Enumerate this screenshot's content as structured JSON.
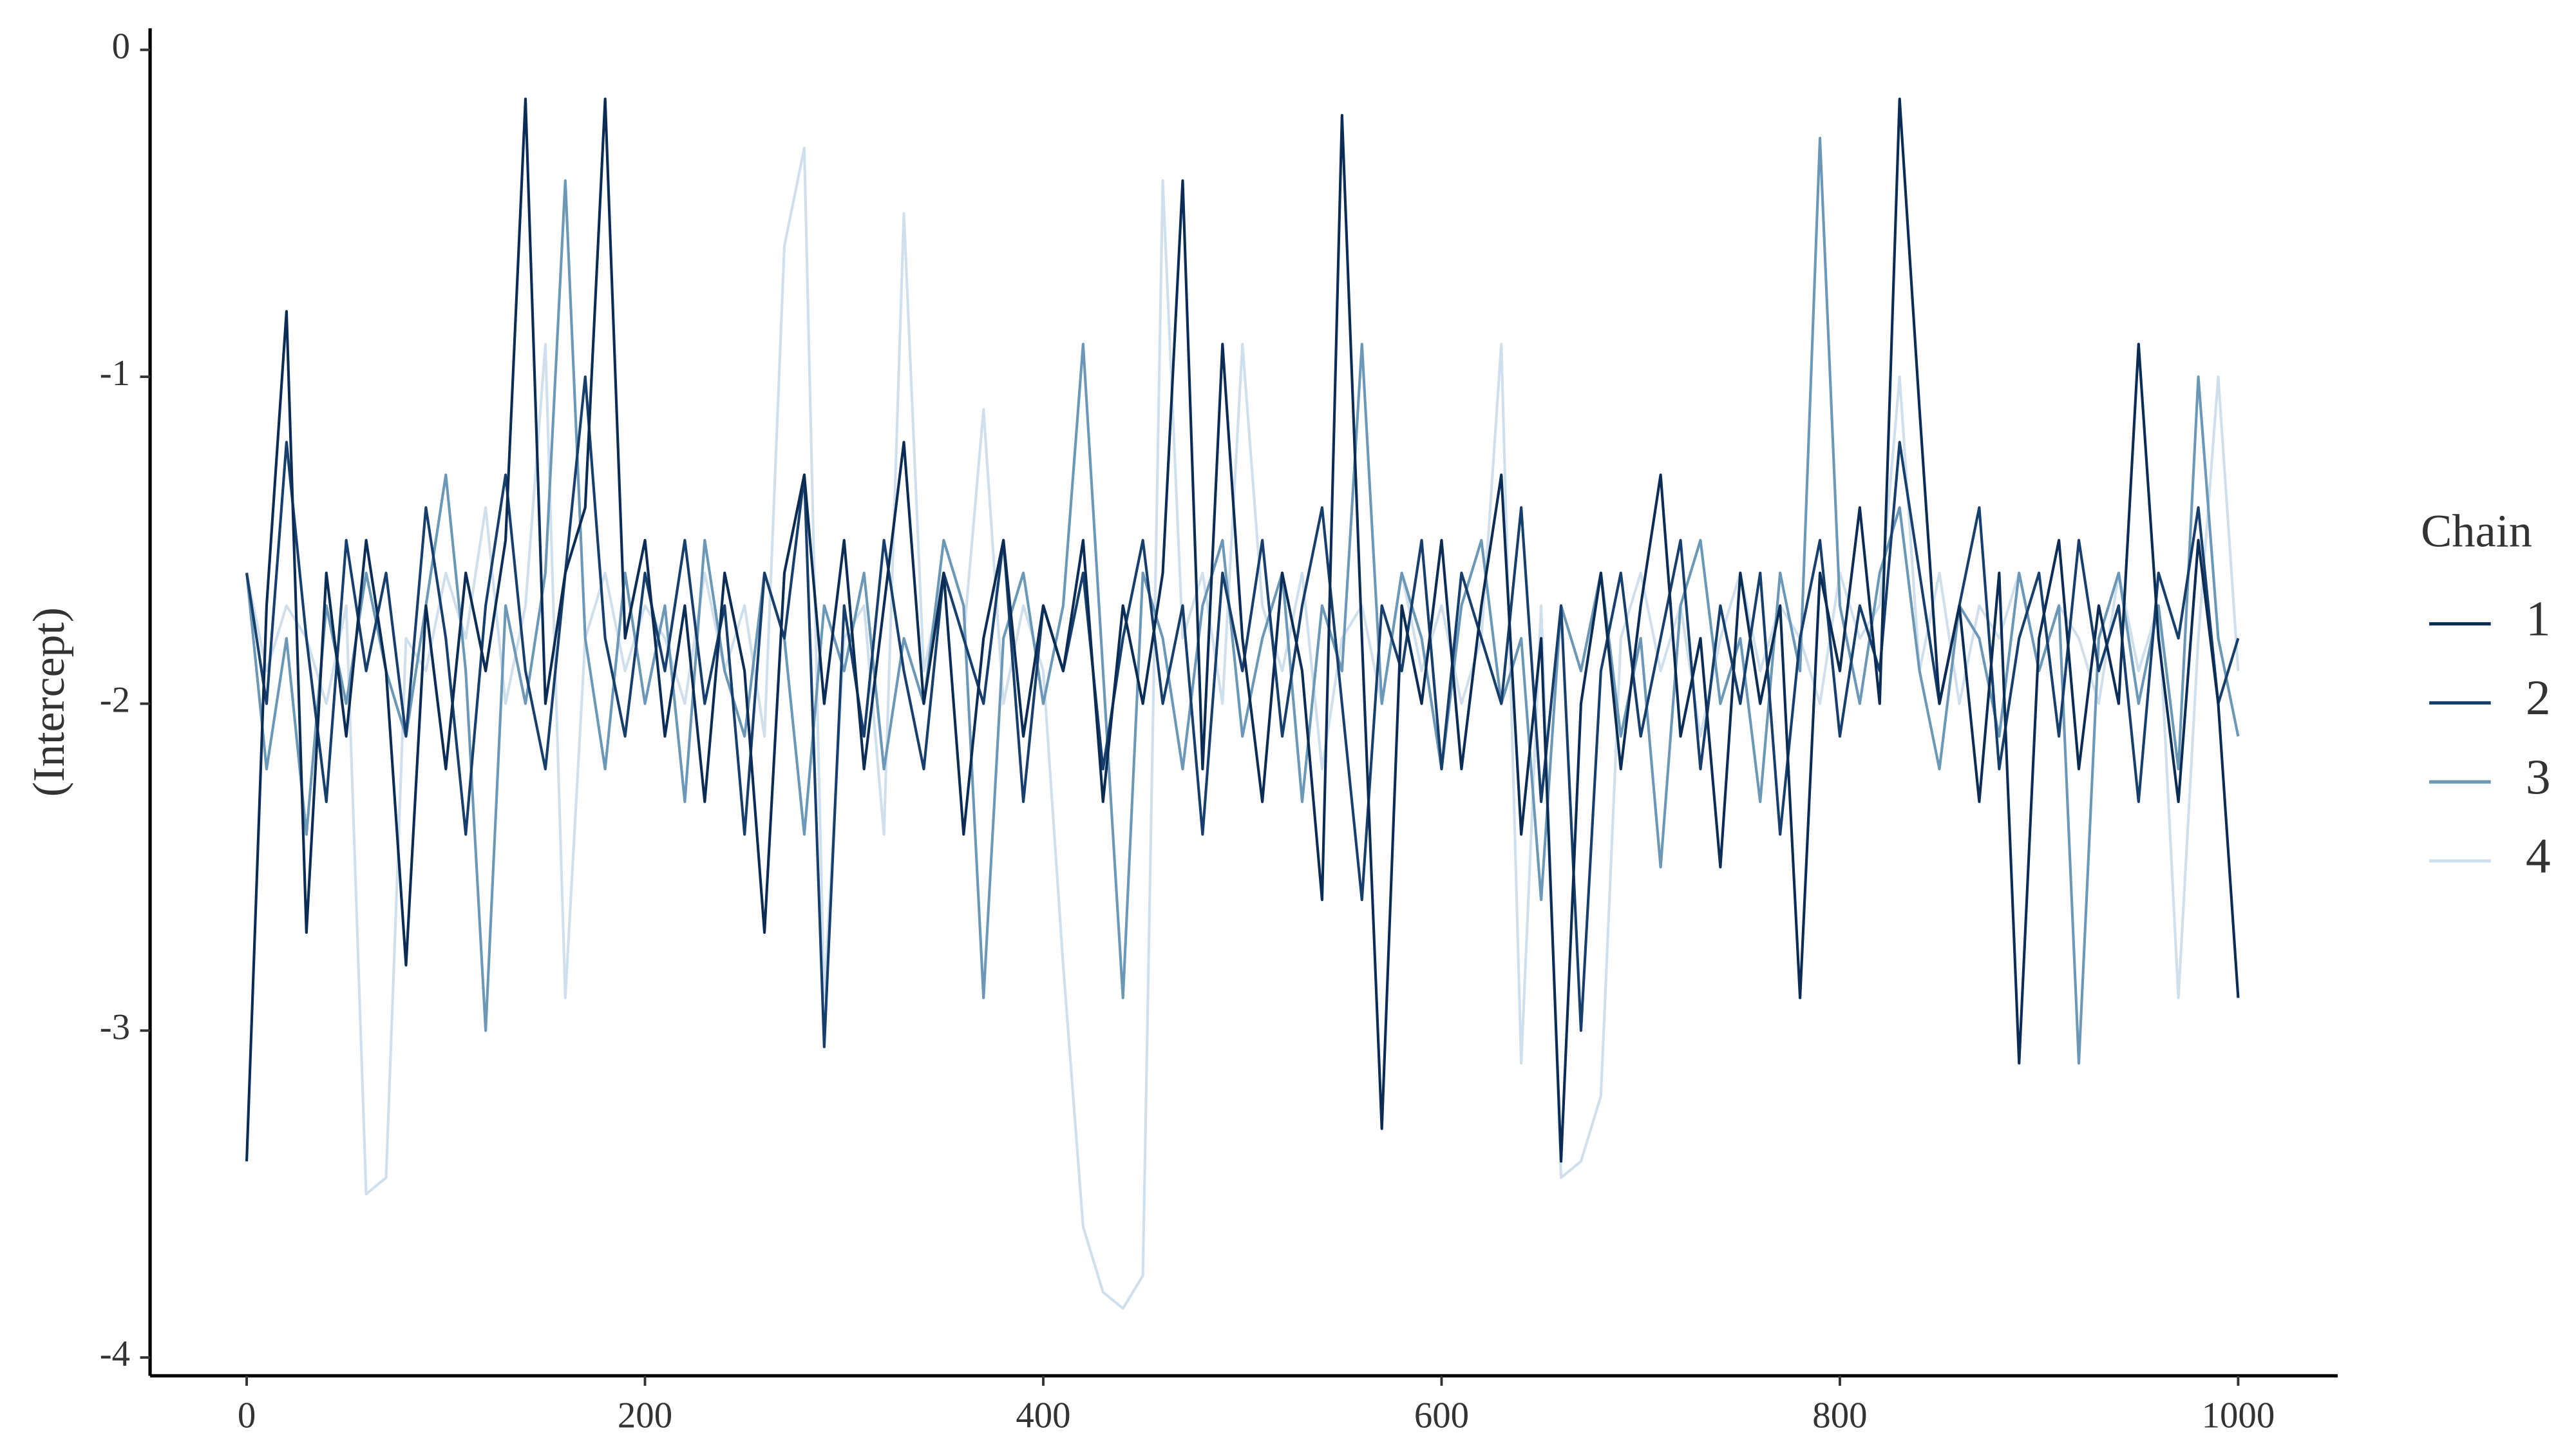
{
  "chart_data": {
    "type": "line",
    "y_label": "(Intercept)",
    "legend_title": "Chain",
    "legend": "right",
    "x": [
      0,
      10,
      20,
      30,
      40,
      50,
      60,
      70,
      80,
      90,
      100,
      110,
      120,
      130,
      140,
      150,
      160,
      170,
      180,
      190,
      200,
      210,
      220,
      230,
      240,
      250,
      260,
      270,
      280,
      290,
      300,
      310,
      320,
      330,
      340,
      350,
      360,
      370,
      380,
      390,
      400,
      410,
      420,
      430,
      440,
      450,
      460,
      470,
      480,
      490,
      500,
      510,
      520,
      530,
      540,
      550,
      560,
      570,
      580,
      590,
      600,
      610,
      620,
      630,
      640,
      650,
      660,
      670,
      680,
      690,
      700,
      710,
      720,
      730,
      740,
      750,
      760,
      770,
      780,
      790,
      800,
      810,
      820,
      830,
      840,
      850,
      860,
      870,
      880,
      890,
      900,
      910,
      920,
      930,
      940,
      950,
      960,
      970,
      980,
      990,
      1000
    ],
    "series": [
      {
        "name": "1",
        "color": "#0b2d55",
        "values": [
          -3.4,
          -1.7,
          -0.8,
          -2.7,
          -1.6,
          -2.1,
          -1.5,
          -1.9,
          -2.8,
          -1.7,
          -2.2,
          -1.6,
          -1.9,
          -1.5,
          -0.15,
          -2.0,
          -1.6,
          -1.4,
          -0.15,
          -1.8,
          -1.5,
          -2.1,
          -1.7,
          -2.3,
          -1.6,
          -1.9,
          -2.7,
          -1.6,
          -1.3,
          -2.0,
          -1.5,
          -2.2,
          -1.7,
          -1.2,
          -2.0,
          -1.6,
          -2.4,
          -1.8,
          -1.5,
          -2.1,
          -1.7,
          -1.9,
          -1.5,
          -2.3,
          -1.7,
          -2.0,
          -1.6,
          -0.4,
          -2.2,
          -0.9,
          -1.8,
          -2.3,
          -1.6,
          -1.9,
          -2.6,
          -0.2,
          -1.8,
          -3.3,
          -1.7,
          -2.0,
          -1.5,
          -2.2,
          -1.7,
          -1.3,
          -2.4,
          -1.8,
          -3.4,
          -2.0,
          -1.6,
          -2.2,
          -1.7,
          -1.3,
          -2.1,
          -1.8,
          -2.5,
          -1.6,
          -2.0,
          -1.7,
          -2.9,
          -1.6,
          -1.9,
          -1.4,
          -2.0,
          -0.15,
          -1.1,
          -2.0,
          -1.7,
          -2.3,
          -1.6,
          -3.1,
          -1.8,
          -1.5,
          -2.2,
          -1.7,
          -2.0,
          -0.9,
          -1.8,
          -2.3,
          -1.5,
          -2.0,
          -2.9
        ]
      },
      {
        "name": "2",
        "color": "#163f6e",
        "values": [
          -1.6,
          -2.0,
          -1.2,
          -1.8,
          -2.3,
          -1.5,
          -1.9,
          -1.6,
          -2.1,
          -1.4,
          -1.8,
          -2.4,
          -1.7,
          -1.3,
          -1.9,
          -2.2,
          -1.6,
          -1.0,
          -1.8,
          -2.1,
          -1.6,
          -1.9,
          -1.5,
          -2.0,
          -1.7,
          -2.4,
          -1.6,
          -1.8,
          -1.3,
          -3.05,
          -1.7,
          -2.1,
          -1.5,
          -1.9,
          -2.2,
          -1.6,
          -1.8,
          -2.0,
          -1.5,
          -2.3,
          -1.7,
          -1.9,
          -1.6,
          -2.2,
          -1.8,
          -1.5,
          -2.0,
          -1.7,
          -2.4,
          -1.6,
          -1.9,
          -1.5,
          -2.1,
          -1.7,
          -1.4,
          -2.0,
          -2.6,
          -1.7,
          -1.9,
          -1.5,
          -2.2,
          -1.6,
          -1.8,
          -2.0,
          -1.4,
          -2.3,
          -1.7,
          -3.0,
          -1.9,
          -1.6,
          -2.1,
          -1.8,
          -1.5,
          -2.2,
          -1.7,
          -2.0,
          -1.6,
          -2.4,
          -1.8,
          -1.5,
          -2.1,
          -1.7,
          -1.9,
          -1.2,
          -1.6,
          -2.0,
          -1.7,
          -1.4,
          -2.2,
          -1.8,
          -1.6,
          -2.1,
          -1.5,
          -1.9,
          -1.7,
          -2.3,
          -1.6,
          -1.8,
          -1.4,
          -2.0,
          -1.8
        ]
      },
      {
        "name": "3",
        "color": "#6a98b6",
        "values": [
          -1.6,
          -2.2,
          -1.8,
          -2.4,
          -1.7,
          -2.0,
          -1.6,
          -1.9,
          -2.1,
          -1.7,
          -1.3,
          -1.9,
          -3.0,
          -1.7,
          -2.0,
          -1.6,
          -0.4,
          -1.8,
          -2.2,
          -1.6,
          -2.0,
          -1.7,
          -2.3,
          -1.5,
          -1.9,
          -2.1,
          -1.6,
          -1.8,
          -2.4,
          -1.7,
          -1.9,
          -1.6,
          -2.2,
          -1.8,
          -2.0,
          -1.5,
          -1.7,
          -2.9,
          -1.8,
          -1.6,
          -2.0,
          -1.7,
          -0.9,
          -1.9,
          -2.9,
          -1.6,
          -1.8,
          -2.2,
          -1.7,
          -1.5,
          -2.1,
          -1.8,
          -1.6,
          -2.3,
          -1.7,
          -1.9,
          -0.9,
          -2.0,
          -1.6,
          -1.8,
          -2.2,
          -1.7,
          -1.5,
          -2.0,
          -1.8,
          -2.6,
          -1.7,
          -1.9,
          -1.6,
          -2.1,
          -1.8,
          -2.5,
          -1.7,
          -1.5,
          -2.0,
          -1.8,
          -2.3,
          -1.6,
          -1.9,
          -0.27,
          -1.7,
          -2.0,
          -1.6,
          -1.4,
          -1.9,
          -2.2,
          -1.7,
          -1.8,
          -2.1,
          -1.6,
          -1.9,
          -1.7,
          -3.1,
          -1.8,
          -1.6,
          -2.0,
          -1.7,
          -2.2,
          -1.0,
          -1.8,
          -2.1
        ]
      },
      {
        "name": "4",
        "color": "#cfe0ec",
        "values": [
          -1.6,
          -1.9,
          -1.7,
          -1.8,
          -2.0,
          -1.7,
          -3.5,
          -3.45,
          -1.8,
          -1.9,
          -1.6,
          -1.8,
          -1.4,
          -2.0,
          -1.7,
          -0.9,
          -2.9,
          -1.8,
          -1.6,
          -1.9,
          -1.7,
          -1.8,
          -2.0,
          -1.6,
          -1.9,
          -1.7,
          -2.1,
          -0.6,
          -0.3,
          -2.9,
          -1.8,
          -1.7,
          -2.4,
          -0.5,
          -1.9,
          -1.6,
          -1.8,
          -1.1,
          -2.0,
          -1.7,
          -1.9,
          -2.8,
          -3.6,
          -3.8,
          -3.85,
          -3.75,
          -0.4,
          -1.8,
          -1.6,
          -2.0,
          -0.9,
          -1.7,
          -1.9,
          -1.6,
          -2.2,
          -1.8,
          -1.7,
          -2.0,
          -1.6,
          -1.9,
          -1.7,
          -2.0,
          -1.8,
          -0.9,
          -3.1,
          -1.7,
          -3.45,
          -3.4,
          -3.2,
          -1.8,
          -1.6,
          -1.9,
          -1.7,
          -2.1,
          -1.8,
          -1.6,
          -1.9,
          -1.7,
          -1.8,
          -2.0,
          -1.6,
          -1.8,
          -1.7,
          -1.0,
          -1.9,
          -1.6,
          -2.0,
          -1.7,
          -1.8,
          -1.6,
          -1.9,
          -1.7,
          -1.8,
          -2.0,
          -1.6,
          -1.9,
          -1.7,
          -2.9,
          -1.8,
          -1.0,
          -1.9
        ]
      }
    ],
    "xlim": [
      -48.5,
      1050
    ],
    "xticks": [
      0,
      200,
      400,
      600,
      800,
      1000
    ],
    "ylim": [
      -4.056,
      0.066
    ],
    "yticks": [
      -4,
      -3,
      -2,
      -1,
      0
    ]
  }
}
